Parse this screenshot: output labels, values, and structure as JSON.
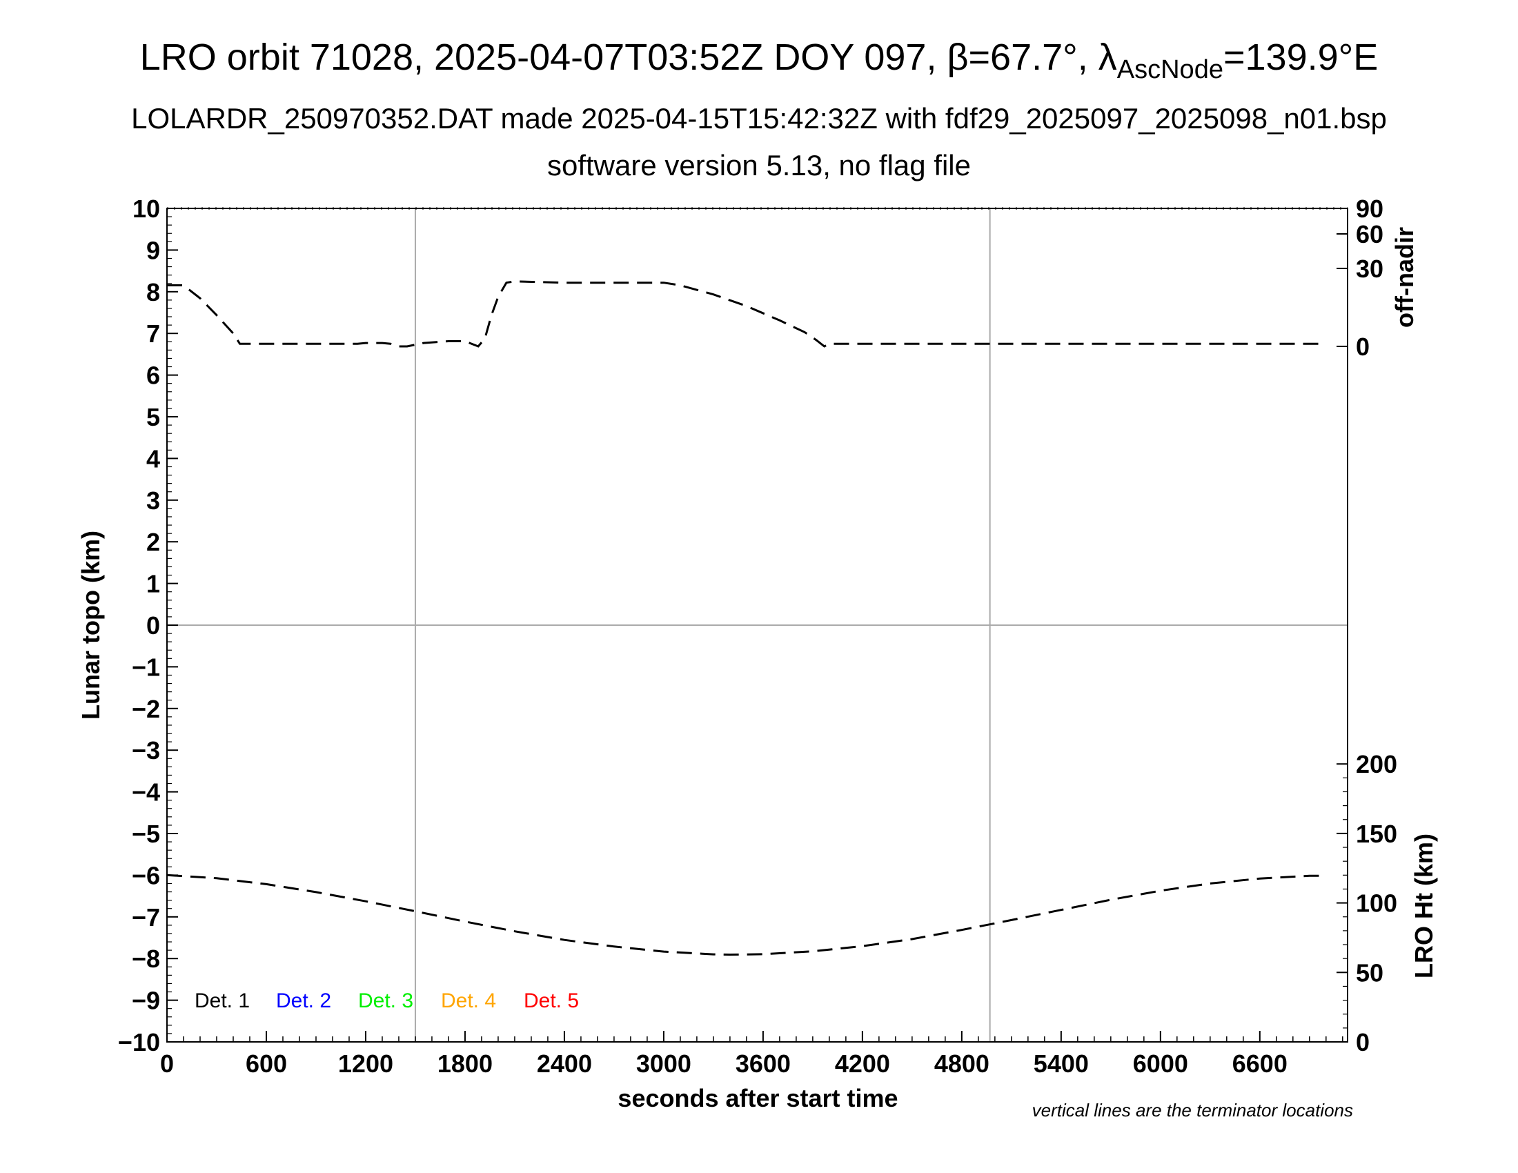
{
  "header": {
    "title_main": "LRO orbit 71028, 2025-04-07T03:52Z DOY 097, β=67.7°, λ",
    "title_sub": "AscNode",
    "title_end": "=139.9°E",
    "subtitle1": "LOLARDR_250970352.DAT made 2025-04-15T15:42:32Z with fdf29_2025097_2025098_n01.bsp",
    "subtitle2": "software version 5.13, no flag file"
  },
  "note": "vertical lines are the terminator locations",
  "chart_data": {
    "type": "line",
    "xlabel": "seconds after start time",
    "ylabel": "Lunar topo (km)",
    "y2_top_label": "off-nadir",
    "y2_bottom_label": "LRO Ht (km)",
    "xlim": [
      0,
      7130
    ],
    "ylim": [
      -10,
      10
    ],
    "x_ticks": [
      0,
      600,
      1200,
      1800,
      2400,
      3000,
      3600,
      4200,
      4800,
      5400,
      6000,
      6600
    ],
    "y_ticks": [
      10,
      9,
      8,
      7,
      6,
      5,
      4,
      3,
      2,
      1,
      0,
      -1,
      -2,
      -3,
      -4,
      -5,
      -6,
      -7,
      -8,
      -9,
      -10
    ],
    "y_tick_labels": [
      "10",
      "9",
      "8",
      "7",
      "6",
      "5",
      "4",
      "3",
      "2",
      "1",
      "0",
      "−1",
      "−2",
      "−3",
      "−4",
      "−5",
      "−6",
      "−7",
      "−8",
      "−9",
      "−10"
    ],
    "off_nadir_ticks": [
      0,
      30,
      60,
      90
    ],
    "lro_ht_ticks": [
      0,
      50,
      100,
      150,
      200
    ],
    "terminator_x": [
      1500,
      4970
    ],
    "zero_line_y": 0,
    "legend": [
      {
        "label": "Det. 1",
        "color": "#000000"
      },
      {
        "label": "Det. 2",
        "color": "#0000ff"
      },
      {
        "label": "Det. 3",
        "color": "#00ee00"
      },
      {
        "label": "Det. 4",
        "color": "#ffa500"
      },
      {
        "label": "Det. 5",
        "color": "#ff0000"
      }
    ],
    "series": [
      {
        "name": "off-nadir",
        "axis": "off-nadir",
        "x": [
          0,
          100,
          200,
          300,
          400,
          440,
          600,
          900,
          1150,
          1200,
          1300,
          1350,
          1400,
          1450,
          1550,
          1700,
          1800,
          1880,
          1920,
          1960,
          2000,
          2050,
          2100,
          2400,
          2700,
          3000,
          3100,
          3300,
          3500,
          3700,
          3850,
          3920,
          3970,
          4000,
          4100,
          4500,
          4800,
          5200,
          5600,
          6000,
          6400,
          6700,
          7000
        ],
        "y": [
          23.5,
          23.5,
          18.5,
          12,
          5,
          1,
          1,
          1,
          1,
          1.3,
          1.3,
          1,
          0,
          0,
          1.3,
          2,
          2,
          0,
          3,
          12,
          19,
          24.5,
          25,
          24.5,
          24.5,
          24.5,
          23.5,
          20,
          15.5,
          10,
          5.5,
          2.5,
          0,
          1,
          1,
          1,
          1,
          1,
          1,
          1,
          1,
          1,
          1
        ]
      },
      {
        "name": "LRO Ht",
        "axis": "lro-ht",
        "x": [
          0,
          300,
          600,
          900,
          1200,
          1500,
          1800,
          2100,
          2400,
          2700,
          3000,
          3300,
          3400,
          3600,
          3900,
          4200,
          4500,
          4800,
          5100,
          5400,
          5700,
          6000,
          6300,
          6600,
          6900,
          7000
        ],
        "y": [
          120,
          117.8,
          113.5,
          107.8,
          101.2,
          94,
          86.6,
          79.6,
          73.4,
          68.6,
          65,
          63,
          62.8,
          63.1,
          65.2,
          68.9,
          74,
          80.6,
          87.7,
          95,
          102.3,
          108.8,
          114,
          117.6,
          119.5,
          119.5
        ]
      }
    ]
  }
}
